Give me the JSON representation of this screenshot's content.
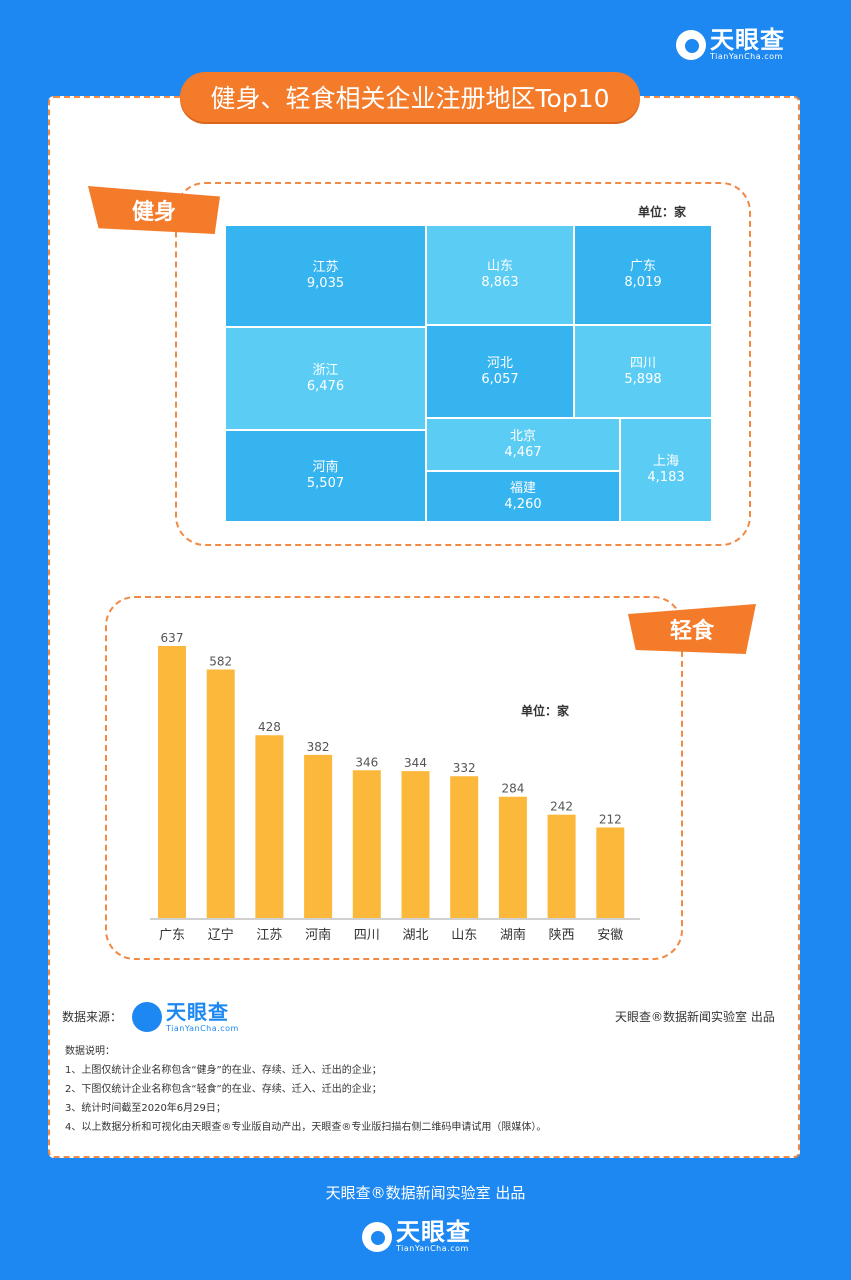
{
  "brand": {
    "name": "天眼查",
    "url": "TianYanCha.com"
  },
  "title": "健身、轻食相关企业注册地区Top10",
  "fitness": {
    "tag": "健身",
    "unit": "单位：家"
  },
  "food": {
    "tag": "轻食",
    "unit": "单位：家"
  },
  "source": {
    "label": "数据来源：",
    "credit": "天眼查®数据新闻实验室 出品"
  },
  "notes": {
    "title": "数据说明：",
    "items": [
      "1、上图仅统计企业名称包含“健身”的在业、存续、迁入、迁出的企业；",
      "2、下图仅统计企业名称包含“轻食”的在业、存续、迁入、迁出的企业；",
      "3、统计时间截至2020年6月29日；",
      "4、以上数据分析和可视化由天眼查®专业版自动产出，天眼查®专业版扫描右侧二维码申请试用（限媒体）。"
    ]
  },
  "footer": {
    "credit": "天眼查®数据新闻实验室 出品"
  },
  "colors": {
    "background": "#1e88f2",
    "accent": "#f47b2a",
    "bar": "#fbb83a",
    "treemap_dark": "#35b4f0",
    "treemap_light": "#5bcdf5"
  },
  "chart_data": [
    {
      "type": "treemap",
      "unit": "单位：家",
      "categories": [
        "江苏",
        "山东",
        "广东",
        "浙江",
        "河北",
        "四川",
        "河南",
        "北京",
        "福建",
        "上海"
      ],
      "values": [
        9035,
        8863,
        8019,
        6476,
        6057,
        5898,
        5507,
        4467,
        4260,
        4183
      ],
      "labels": [
        "9,035",
        "8,863",
        "8,019",
        "6,476",
        "6,057",
        "5,898",
        "5,507",
        "4,467",
        "4,260",
        "4,183"
      ]
    },
    {
      "type": "bar",
      "unit": "单位：家",
      "categories": [
        "广东",
        "辽宁",
        "江苏",
        "河南",
        "四川",
        "湖北",
        "山东",
        "湖南",
        "陕西",
        "安徽"
      ],
      "values": [
        637,
        582,
        428,
        382,
        346,
        344,
        332,
        284,
        242,
        212
      ]
    }
  ]
}
